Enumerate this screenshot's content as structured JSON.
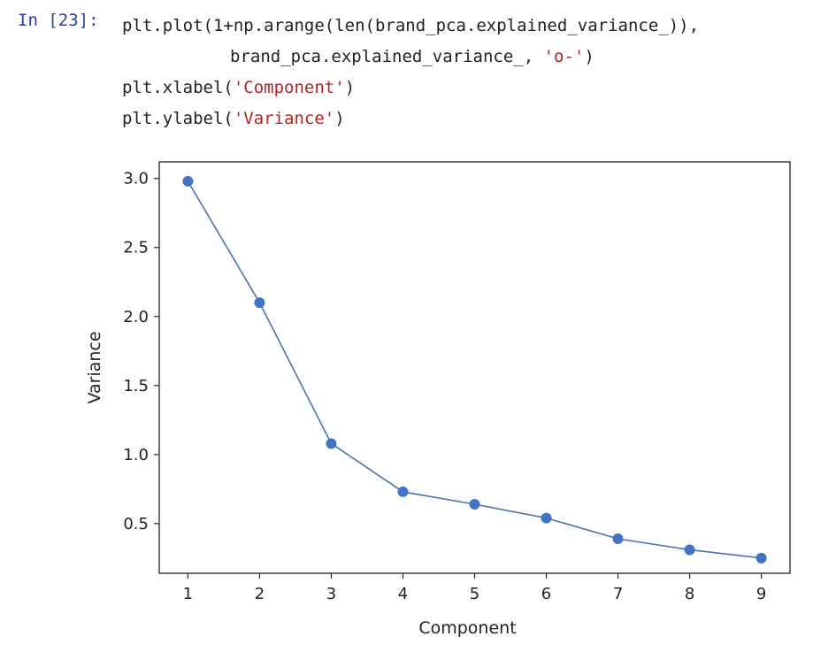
{
  "cell": {
    "prompt": "In [23]:",
    "code_lines": [
      {
        "parts": [
          {
            "t": "plt.plot(1+np.arange(len(brand_pca.explained_variance_)),",
            "s": false
          }
        ]
      },
      {
        "parts": [
          {
            "t": "brand_pca.explained_variance_, ",
            "s": false
          },
          {
            "t": "'o-'",
            "s": true
          },
          {
            "t": ")",
            "s": false
          }
        ],
        "indent": true
      },
      {
        "parts": [
          {
            "t": "plt.xlabel(",
            "s": false
          },
          {
            "t": "'Component'",
            "s": true
          },
          {
            "t": ")",
            "s": false
          }
        ]
      },
      {
        "parts": [
          {
            "t": "plt.ylabel(",
            "s": false
          },
          {
            "t": "'Variance'",
            "s": true
          },
          {
            "t": ")",
            "s": false
          }
        ]
      }
    ]
  },
  "colors": {
    "line": "#4c72b0",
    "marker": "#4472c4",
    "prompt": "#303f9f",
    "string": "#ba2121"
  },
  "chart_data": {
    "type": "line",
    "x": [
      1,
      2,
      3,
      4,
      5,
      6,
      7,
      8,
      9
    ],
    "y": [
      2.98,
      2.1,
      1.08,
      0.73,
      0.64,
      0.54,
      0.39,
      0.31,
      0.25
    ],
    "xlabel": "Component",
    "ylabel": "Variance",
    "xticks": [
      "1",
      "2",
      "3",
      "4",
      "5",
      "6",
      "7",
      "8",
      "9"
    ],
    "yticks": [
      "0.5",
      "1.0",
      "1.5",
      "2.0",
      "2.5",
      "3.0"
    ],
    "xlim": [
      0.6,
      9.4
    ],
    "ylim": [
      0.14,
      3.12
    ],
    "marker": "o",
    "grid": false
  }
}
